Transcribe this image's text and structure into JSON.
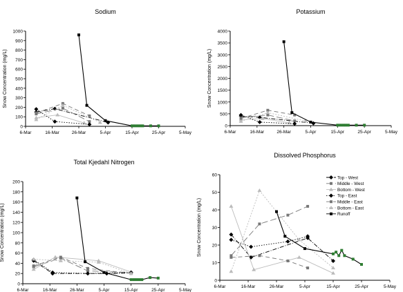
{
  "chart_data": [
    {
      "type": "line",
      "title": "Sodium",
      "xlabel": "",
      "ylabel": "Snow Concentration (mg/L)",
      "ylim": [
        0,
        1000
      ],
      "yticks": [
        0,
        100,
        200,
        300,
        400,
        500,
        600,
        700,
        800,
        900,
        1000
      ],
      "xlim": [
        0,
        60
      ],
      "xticks": [
        "6-Mar",
        "16-Mar",
        "26-Mar",
        "5-Apr",
        "15-Apr",
        "25-Apr",
        "5-May"
      ],
      "legend": null,
      "series": [
        {
          "style": "s1",
          "x": [
            4,
            11,
            31
          ],
          "y": [
            150,
            185,
            40
          ]
        },
        {
          "style": "s2",
          "x": [
            4,
            14,
            24
          ],
          "y": [
            130,
            190,
            50
          ]
        },
        {
          "style": "s3",
          "x": [
            4,
            12,
            22
          ],
          "y": [
            90,
            120,
            35
          ]
        },
        {
          "style": "s4",
          "x": [
            4,
            11,
            24
          ],
          "y": [
            180,
            50,
            20
          ]
        },
        {
          "style": "s5",
          "x": [
            4,
            14,
            24
          ],
          "y": [
            140,
            240,
            110
          ]
        },
        {
          "style": "s6",
          "x": [
            4,
            14,
            28
          ],
          "y": [
            70,
            220,
            40
          ]
        },
        {
          "style": "s7",
          "x": [
            20,
            23,
            30,
            40,
            41,
            42,
            43,
            44,
            47,
            50
          ],
          "y": [
            960,
            220,
            60,
            5,
            5,
            5,
            5,
            5,
            5,
            5
          ]
        }
      ]
    },
    {
      "type": "line",
      "title": "Potassium",
      "xlabel": "",
      "ylabel": "Snow Concentration (mg/L)",
      "ylim": [
        0,
        4000
      ],
      "yticks": [
        0,
        500,
        1000,
        1500,
        2000,
        2500,
        3000,
        3500,
        4000
      ],
      "xlim": [
        0,
        60
      ],
      "xticks": [
        "6-Mar",
        "16-Mar",
        "26-Mar",
        "5-Apr",
        "15-Apr",
        "25-Apr",
        "5-May"
      ],
      "legend": null,
      "series": [
        {
          "style": "s1",
          "x": [
            4,
            11,
            31
          ],
          "y": [
            400,
            350,
            100
          ]
        },
        {
          "style": "s2",
          "x": [
            4,
            14,
            24
          ],
          "y": [
            350,
            450,
            200
          ]
        },
        {
          "style": "s3",
          "x": [
            4,
            12,
            22
          ],
          "y": [
            250,
            300,
            120
          ]
        },
        {
          "style": "s4",
          "x": [
            4,
            11,
            24
          ],
          "y": [
            450,
            150,
            80
          ]
        },
        {
          "style": "s5",
          "x": [
            4,
            14,
            24
          ],
          "y": [
            300,
            650,
            450
          ]
        },
        {
          "style": "s6",
          "x": [
            4,
            14,
            28
          ],
          "y": [
            180,
            550,
            200
          ]
        },
        {
          "style": "s7",
          "x": [
            20,
            23,
            30,
            40,
            41,
            42,
            43,
            44,
            47,
            50
          ],
          "y": [
            3550,
            550,
            150,
            20,
            20,
            20,
            20,
            20,
            20,
            20
          ]
        }
      ]
    },
    {
      "type": "line",
      "title": "Total Kjedahl Nitrogen",
      "xlabel": "",
      "ylabel": "Snow Concentration (mg/L)",
      "ylim": [
        0,
        200
      ],
      "yticks": [
        0,
        20,
        40,
        60,
        80,
        100,
        120,
        140,
        160,
        180,
        200
      ],
      "xlim": [
        0,
        60
      ],
      "xticks": [
        "6-Mar",
        "16-Mar",
        "26-Mar",
        "5-Apr",
        "15-Apr",
        "25-Apr",
        "5-May"
      ],
      "legend": null,
      "series": [
        {
          "style": "s1",
          "x": [
            4,
            11,
            31,
            40
          ],
          "y": [
            45,
            20,
            20,
            21
          ]
        },
        {
          "style": "s2",
          "x": [
            4,
            14,
            24,
            40
          ],
          "y": [
            33,
            50,
            25,
            22
          ]
        },
        {
          "style": "s3",
          "x": [
            4,
            12,
            28,
            40
          ],
          "y": [
            28,
            52,
            45,
            23
          ]
        },
        {
          "style": "s4",
          "x": [
            4,
            11,
            24,
            40
          ],
          "y": [
            47,
            22,
            20,
            22
          ]
        },
        {
          "style": "s5",
          "x": [
            4,
            14,
            24,
            40
          ],
          "y": [
            35,
            52,
            30,
            20
          ]
        },
        {
          "style": "s6",
          "x": [
            4,
            14,
            28,
            40
          ],
          "y": [
            48,
            45,
            42,
            20
          ]
        },
        {
          "style": "s7",
          "x": [
            20,
            23,
            30,
            40,
            41,
            42,
            43,
            44,
            47,
            50
          ],
          "y": [
            168,
            43,
            22,
            8,
            8,
            8,
            8,
            8,
            12,
            11
          ]
        }
      ]
    },
    {
      "type": "line",
      "title": "Dissolved Phosphorus",
      "xlabel": "",
      "ylabel": "Snow Concentration (mg/L)",
      "ylim": [
        0,
        60
      ],
      "yticks": [
        0,
        10,
        20,
        30,
        40,
        50,
        60
      ],
      "xlim": [
        0,
        60
      ],
      "xticks": [
        "6-Mar",
        "16-Mar",
        "26-Mar",
        "5-Apr",
        "15-Apr",
        "25-Apr",
        "5-May"
      ],
      "legend": "top-right",
      "series": [
        {
          "name": "Top - West",
          "style": "s1",
          "x": [
            4,
            11,
            31,
            40
          ],
          "y": [
            26,
            13,
            24,
            11
          ]
        },
        {
          "name": "Middle - West",
          "style": "s2",
          "x": [
            4,
            14,
            24,
            31
          ],
          "y": [
            14,
            32,
            37,
            42
          ]
        },
        {
          "name": "Bottom - West",
          "style": "s3",
          "x": [
            4,
            12,
            28,
            40
          ],
          "y": [
            42,
            6,
            13,
            4
          ]
        },
        {
          "name": "Top - East",
          "style": "s4",
          "x": [
            4,
            11,
            24,
            31
          ],
          "y": [
            23,
            19,
            22,
            25
          ]
        },
        {
          "name": "Middle - East",
          "style": "s5",
          "x": [
            4,
            14,
            24,
            31
          ],
          "y": [
            13,
            14,
            11,
            7
          ]
        },
        {
          "name": "Bottom - East",
          "style": "s6",
          "x": [
            4,
            14,
            28,
            40
          ],
          "y": [
            5,
            51,
            23,
            7
          ]
        },
        {
          "name": "Runoff",
          "style": "s7",
          "x": [
            20,
            23,
            30,
            40,
            41,
            42,
            43,
            44,
            47,
            50
          ],
          "y": [
            39,
            25,
            18,
            15,
            16,
            14,
            17,
            14,
            12,
            9
          ]
        }
      ]
    }
  ],
  "styles": {
    "s1": {
      "color": "#000000",
      "dash": "6,2,1,2",
      "marker": "diamond"
    },
    "s2": {
      "color": "#777777",
      "dash": "9,4",
      "marker": "square"
    },
    "s3": {
      "color": "#bbbbbb",
      "dash": "",
      "marker": "triangle"
    },
    "s4": {
      "color": "#000000",
      "dash": "1.5,2",
      "marker": "diamond"
    },
    "s5": {
      "color": "#777777",
      "dash": "6,4",
      "marker": "square"
    },
    "s6": {
      "color": "#bbbbbb",
      "dash": "2,2",
      "marker": "triangle"
    },
    "s7": {
      "color": "#000000",
      "dash": "",
      "marker": "square",
      "late_color": "#2e7d32"
    }
  }
}
